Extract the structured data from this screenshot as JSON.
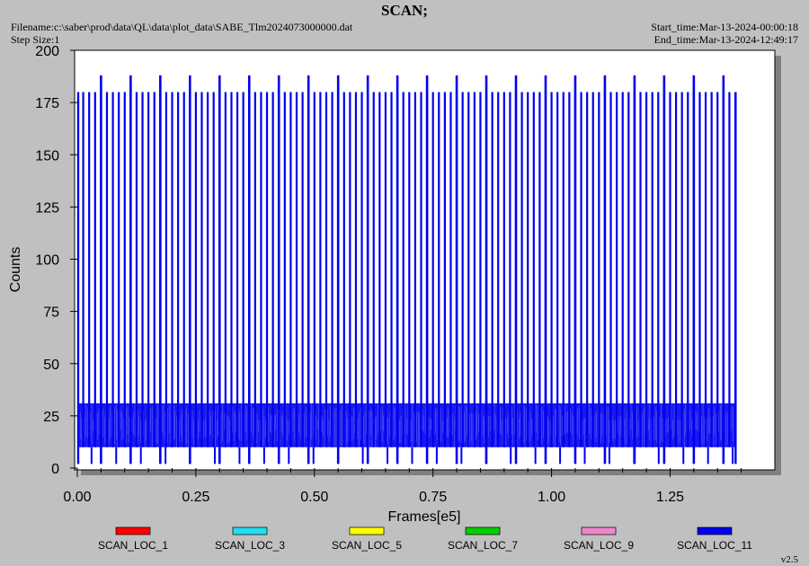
{
  "window": {
    "title": "SCAN;",
    "filename_label": "Filename:c:\\saber\\prod\\data\\QL\\data\\plot_data\\SABE_Tlm2024073000000.dat",
    "step_size_label": "Step Size:1",
    "start_time_label": "Start_time:Mar-13-2024-00:00:18",
    "end_time_label": "End_time:Mar-13-2024-12:49:17",
    "version": "v2.5"
  },
  "colors": {
    "background": "#c0c0c0",
    "plot_area": "#ffffff",
    "shadow": "#808080",
    "series_colors": [
      "#ff0000",
      "#22ddee",
      "#ffff00",
      "#00cc00",
      "#ee88cc",
      "#0000ee"
    ]
  },
  "chart_data": {
    "type": "line",
    "title": "SCAN;",
    "xlabel": "Frames[e5]",
    "ylabel": "Counts",
    "xlim": [
      0,
      1.45
    ],
    "ylim": [
      0,
      200
    ],
    "xticks": [
      "0.00",
      "0.25",
      "0.50",
      "0.75",
      "1.00",
      "1.25"
    ],
    "xtick_values": [
      0,
      0.25,
      0.5,
      0.75,
      1.0,
      1.25
    ],
    "yticks": [
      "0",
      "25",
      "50",
      "75",
      "100",
      "125",
      "150",
      "175",
      "200"
    ],
    "ytick_values": [
      0,
      25,
      50,
      75,
      100,
      125,
      150,
      175,
      200
    ],
    "grid": false,
    "legend_position": "bottom",
    "series": [
      {
        "name": "SCAN_LOC_1",
        "color": "#ff0000"
      },
      {
        "name": "SCAN_LOC_3",
        "color": "#22ddee"
      },
      {
        "name": "SCAN_LOC_5",
        "color": "#ffff00"
      },
      {
        "name": "SCAN_LOC_7",
        "color": "#00cc00"
      },
      {
        "name": "SCAN_LOC_9",
        "color": "#ee88cc"
      },
      {
        "name": "SCAN_LOC_11",
        "color": "#0000ee",
        "x_range": [
          0.0,
          1.39
        ],
        "baseline_band": [
          10,
          31
        ],
        "spike_interval": 0.0125,
        "spike_peak": 180,
        "tall_spike_interval": 0.0625,
        "tall_spike_peak": 188,
        "notch_low": 2
      }
    ]
  }
}
